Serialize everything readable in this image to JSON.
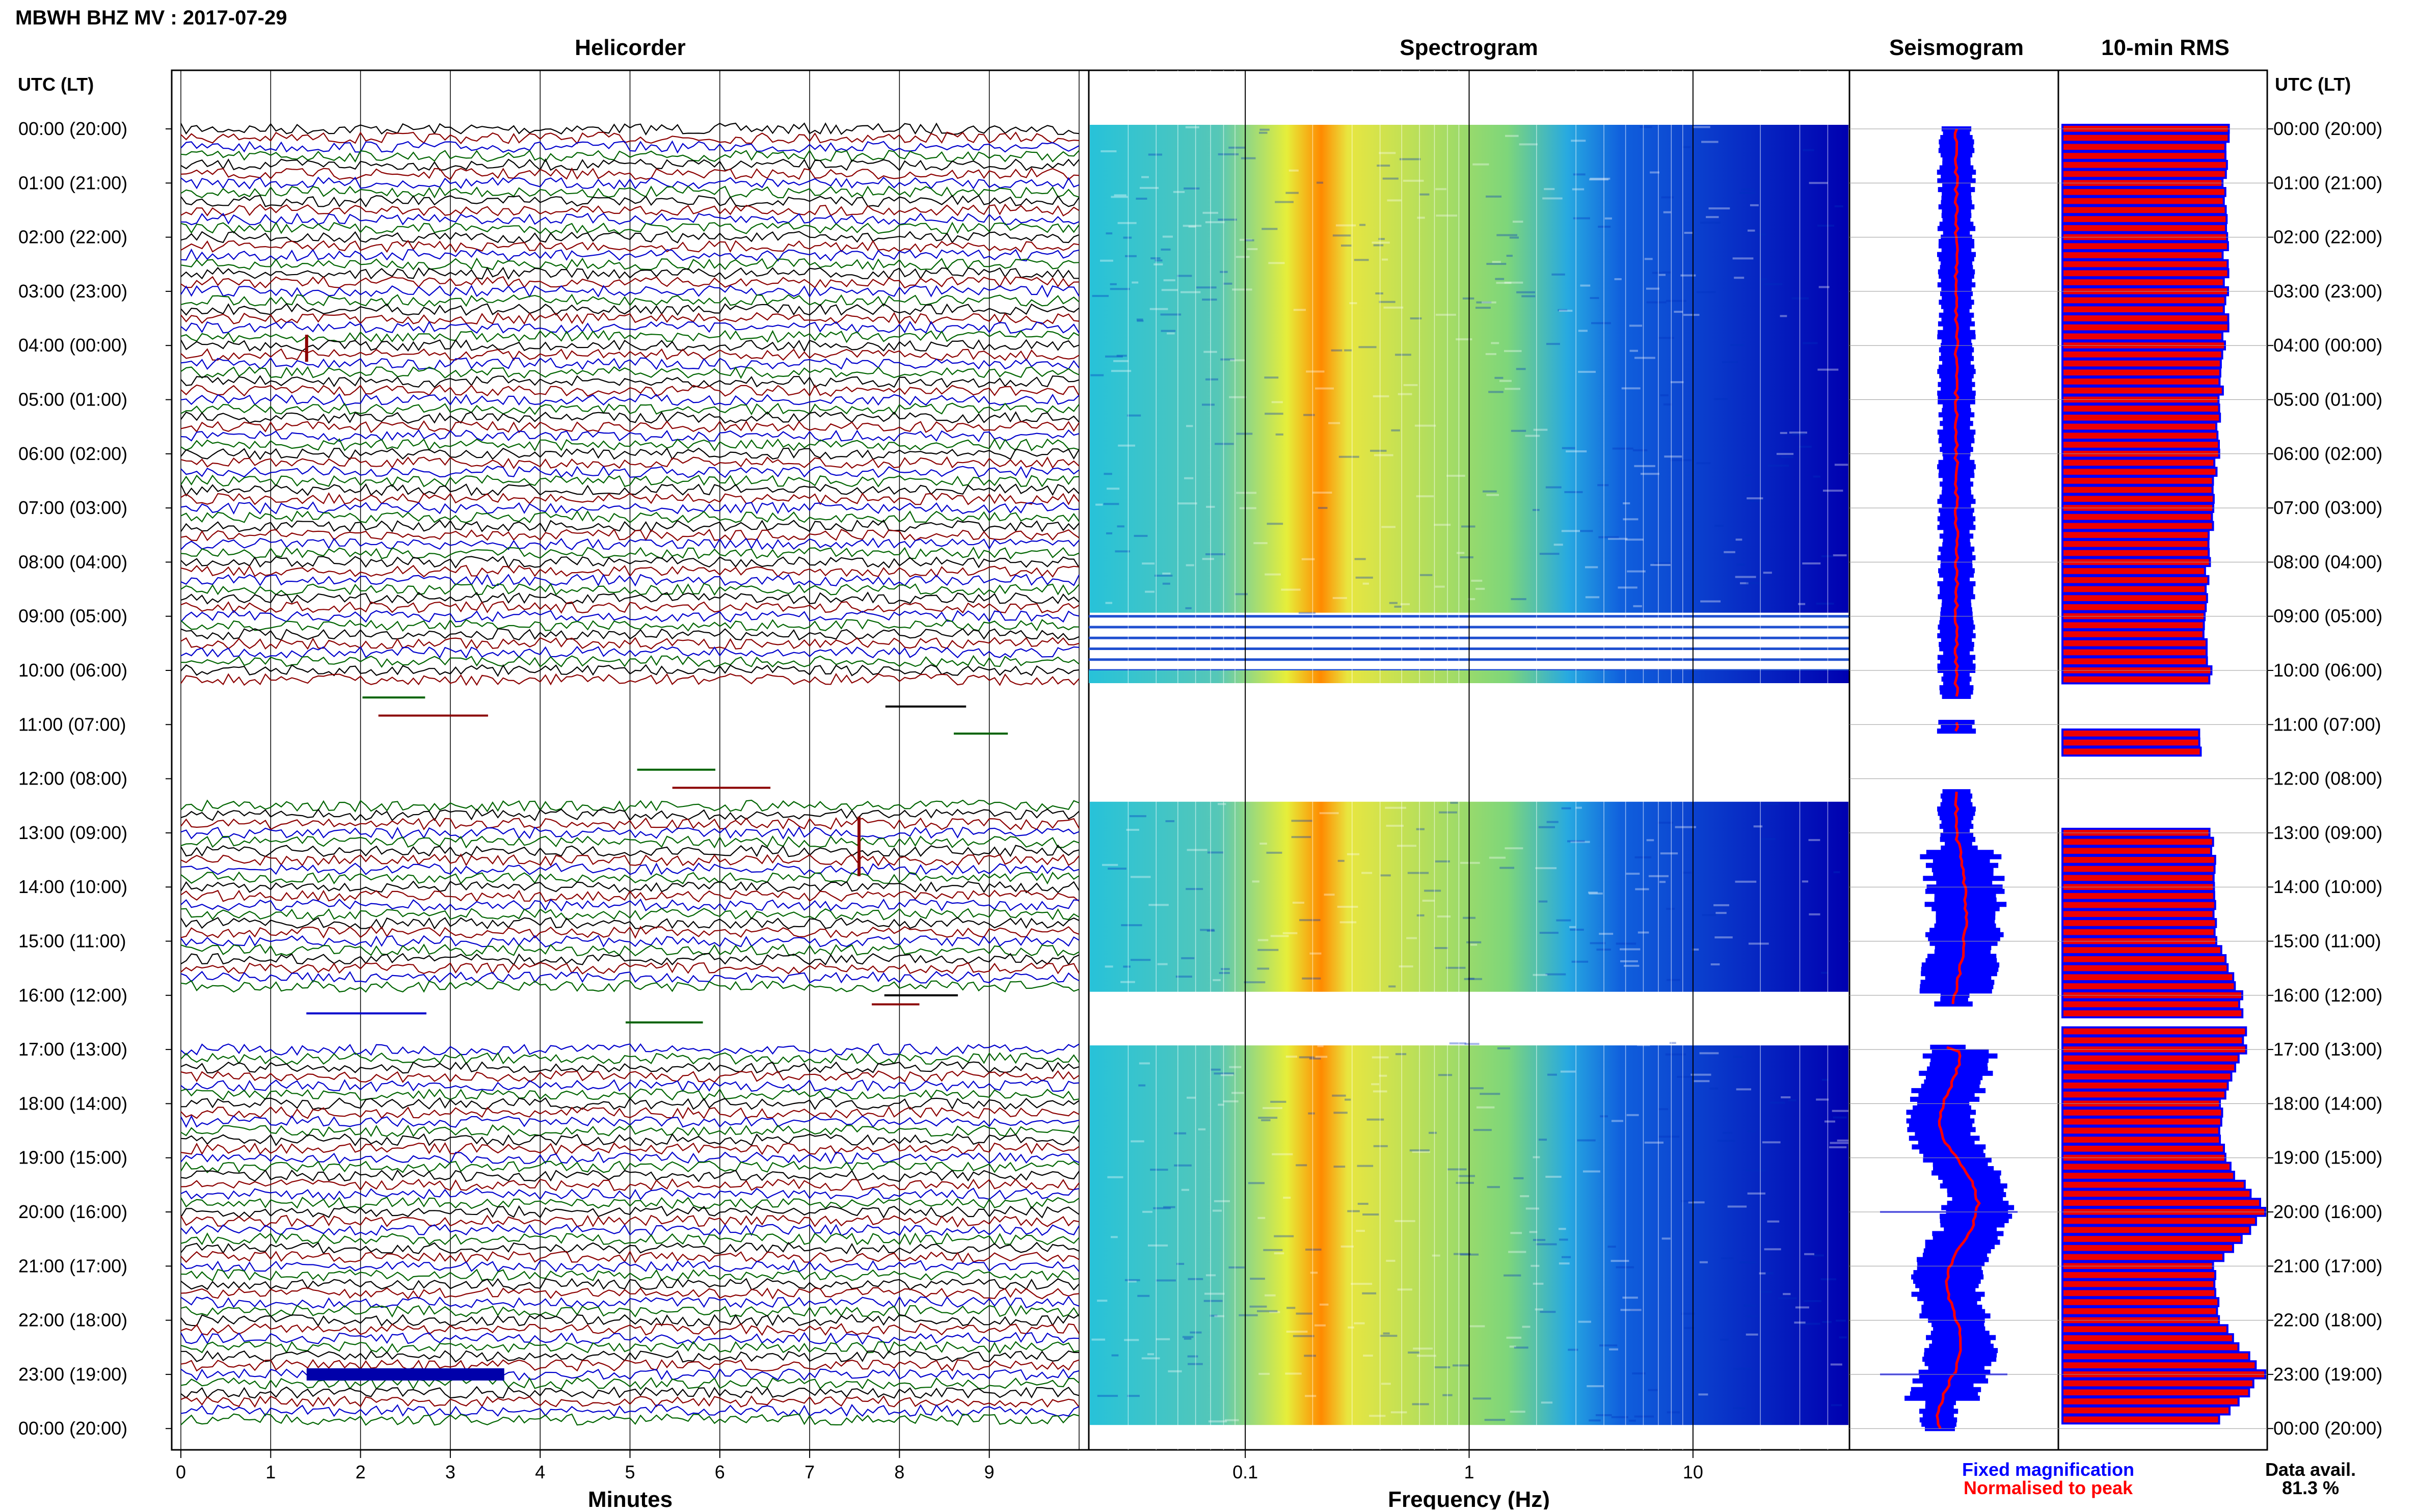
{
  "header": {
    "station_title": "MBWH BHZ MV : 2017-07-29",
    "panel_titles": {
      "helicorder": "Helicorder",
      "spectrogram": "Spectrogram",
      "seismogram": "Seismogram",
      "rms": "10-min RMS"
    },
    "axis_header_left": "UTC (LT)",
    "axis_header_right": "UTC (LT)"
  },
  "footer": {
    "helicorder_xlabel": "Minutes",
    "spectrogram_xlabel": "Frequency (Hz)",
    "legend_fixed": "Fixed magnification",
    "legend_normalised": "Normalised to peak",
    "data_avail_label": "Data avail.",
    "data_avail_value": "81.3 %"
  },
  "colors": {
    "trace_cycle": [
      "#000000",
      "#8b0000",
      "#0000cc",
      "#006400"
    ],
    "seismogram_fixed": "#0000ff",
    "seismogram_normalised": "#ff0000",
    "rms_fill": "#ee0000",
    "rms_edge": "#0000ff",
    "spectrogram_low": "#0000aa",
    "spectrogram_high": "#ff4400"
  },
  "chart_data": {
    "type": "heatmap",
    "time_rows": [
      "00:00 (20:00)",
      "01:00 (21:00)",
      "02:00 (22:00)",
      "03:00 (23:00)",
      "04:00 (00:00)",
      "05:00 (01:00)",
      "06:00 (02:00)",
      "07:00 (03:00)",
      "08:00 (04:00)",
      "09:00 (05:00)",
      "10:00 (06:00)",
      "11:00 (07:00)",
      "12:00 (08:00)",
      "13:00 (09:00)",
      "14:00 (10:00)",
      "15:00 (11:00)",
      "16:00 (12:00)",
      "17:00 (13:00)",
      "18:00 (14:00)",
      "19:00 (15:00)",
      "20:00 (16:00)",
      "21:00 (17:00)",
      "22:00 (18:00)",
      "23:00 (19:00)",
      "00:00 (20:00)"
    ],
    "helicorder": {
      "x_ticks": [
        "0",
        "1",
        "2",
        "3",
        "4",
        "5",
        "6",
        "7",
        "8",
        "9"
      ],
      "xlim": [
        0,
        10
      ],
      "gap_hours": [
        [
          10.2,
          12.5
        ],
        [
          16.0,
          16.9
        ]
      ]
    },
    "spectrogram": {
      "x_ticks": [
        "0.1",
        "1",
        "10"
      ],
      "xlim": [
        0.02,
        50
      ],
      "x_scale": "log",
      "peak_frequency_hz": 0.25
    },
    "rms_10min": {
      "xlim": [
        0,
        1
      ],
      "hourly_values": [
        0.81,
        0.8,
        0.8,
        0.81,
        0.8,
        0.78,
        0.76,
        0.74,
        0.72,
        0.7,
        0.73,
        0.68,
        null,
        0.73,
        0.76,
        0.76,
        0.88,
        0.9,
        0.78,
        0.79,
        1.0,
        0.75,
        0.76,
        1.0,
        0.72
      ],
      "gap_hours": [
        [
          10.2,
          11.1
        ],
        [
          11.6,
          12.1
        ],
        [
          12.2,
          13.0
        ],
        [
          16.4,
          16.6
        ]
      ]
    }
  }
}
